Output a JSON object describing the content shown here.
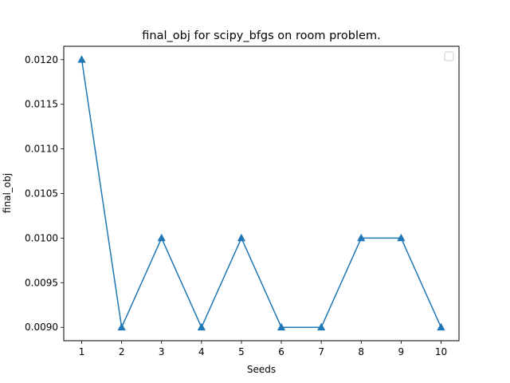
{
  "chart_data": {
    "type": "line",
    "title": "final_obj for scipy_bfgs on room problem.",
    "xlabel": "Seeds",
    "ylabel": "final_obj",
    "x": [
      1,
      2,
      3,
      4,
      5,
      6,
      7,
      8,
      9,
      10
    ],
    "x_tick_labels": [
      "1",
      "2",
      "3",
      "4",
      "5",
      "6",
      "7",
      "8",
      "9",
      "10"
    ],
    "series": [
      {
        "values": [
          0.012,
          0.009,
          0.01,
          0.009,
          0.01,
          0.009,
          0.009,
          0.01,
          0.01,
          0.009
        ],
        "color": "#1f77b4",
        "marker": "triangle-up"
      }
    ],
    "y_ticks": [
      0.009,
      0.0095,
      0.01,
      0.0105,
      0.011,
      0.0115,
      0.012
    ],
    "y_tick_labels": [
      "0.0090",
      "0.0095",
      "0.0100",
      "0.0105",
      "0.0110",
      "0.0115",
      "0.0120"
    ],
    "xlim": [
      0.55,
      10.45
    ],
    "ylim": [
      0.00885,
      0.01215
    ],
    "grid": false,
    "legend": {
      "placement": "top-right",
      "entries": []
    }
  }
}
